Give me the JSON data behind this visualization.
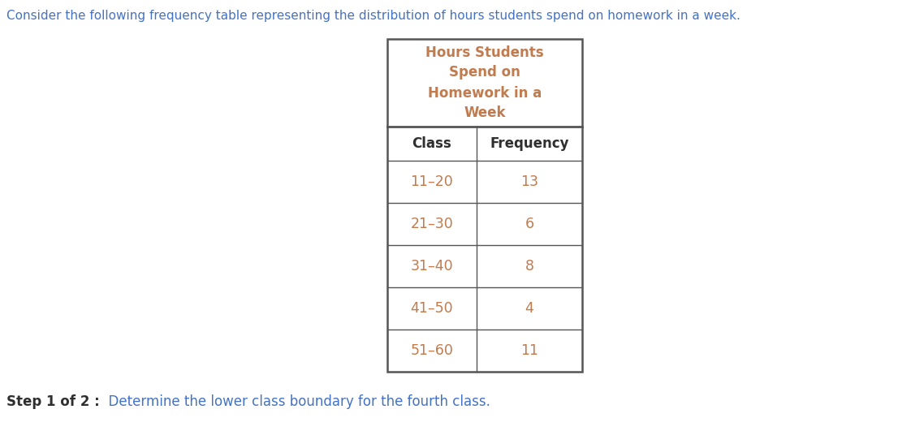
{
  "intro_text": "Consider the following frequency table representing the distribution of hours students spend on homework in a week.",
  "intro_text_color": "#4472c4",
  "table_title_lines": [
    "Hours Students",
    "Spend on",
    "Homework in a",
    "Week"
  ],
  "table_title_color": "#c07b4e",
  "col_headers": [
    "Class",
    "Frequency"
  ],
  "col_header_color": "#2f2f2f",
  "rows": [
    [
      "11–20",
      "13"
    ],
    [
      "21–30",
      "6"
    ],
    [
      "31–40",
      "8"
    ],
    [
      "41–50",
      "4"
    ],
    [
      "51–60",
      "11"
    ]
  ],
  "row_text_color": "#c07b4e",
  "step_bold": "Step 1 of 2 :",
  "step_normal": "  Determine the lower class boundary for the fourth class.",
  "step_bold_color": "#2f2f2f",
  "step_normal_color": "#4472c4",
  "background_color": "#ffffff",
  "table_border_color": "#555555",
  "fig_width": 11.22,
  "fig_height": 5.52,
  "dpi": 100
}
